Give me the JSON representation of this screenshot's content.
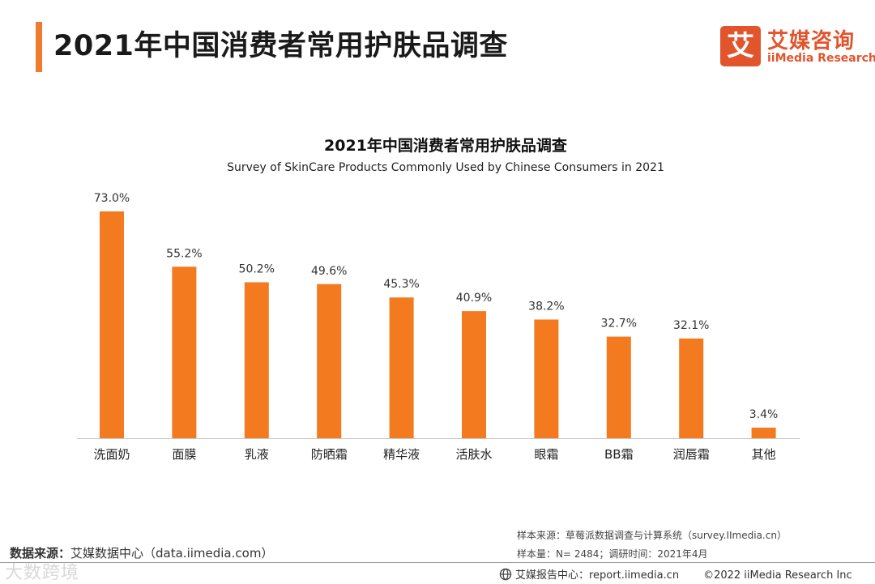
{
  "header": {
    "title": "2021年中国消费者常用护肤品调查"
  },
  "logo": {
    "mark": "艾",
    "name_cn": "艾媒咨询",
    "name_en": "iiMedia Research"
  },
  "colors": {
    "accent": "#f07a2e",
    "bar": "#f47a20",
    "brand": "#e2552c"
  },
  "chart_data": {
    "type": "bar",
    "title": "2021年中国消费者常用护肤品调查",
    "subtitle": "Survey of SkinCare Products Commonly Used by Chinese Consumers in 2021",
    "categories": [
      "洗面奶",
      "面膜",
      "乳液",
      "防晒霜",
      "精华液",
      "活肤水",
      "眼霜",
      "BB霜",
      "润唇霜",
      "其他"
    ],
    "values": [
      73.0,
      55.2,
      50.2,
      49.6,
      45.3,
      40.9,
      38.2,
      32.7,
      32.1,
      3.4
    ],
    "value_labels": [
      "73.0%",
      "55.2%",
      "50.2%",
      "49.6%",
      "45.3%",
      "40.9%",
      "38.2%",
      "32.7%",
      "32.1%",
      "3.4%"
    ],
    "unit": "%",
    "xlabel": "",
    "ylabel": "",
    "ylim": [
      0,
      73.0
    ],
    "grid": false,
    "legend": "none"
  },
  "source": {
    "label": "数据来源：",
    "text": "艾媒数据中心（data.iimedia.com）"
  },
  "notes": {
    "sample_source": "样本来源：草莓派数据调查与计算系统（survey.IImedia.cn）",
    "sample_size": "样本量：N= 2484；调研时间：2021年4月"
  },
  "footer": {
    "center": "艾媒报告中心：report.iimedia.cn",
    "copyright": "©2022  iiMedia Research  Inc"
  },
  "watermark": "大数跨境"
}
